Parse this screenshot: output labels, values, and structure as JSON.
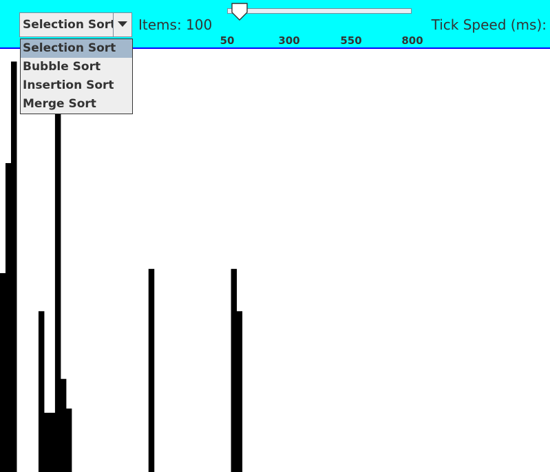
{
  "toolbar": {
    "algorithm_selected": "Selection Sort",
    "items_label": "Items: 100",
    "speed_label": "Tick Speed (ms):",
    "slider_ticks": [
      "50",
      "300",
      "550",
      "800"
    ]
  },
  "menu": {
    "items": [
      "Selection Sort",
      "Bubble Sort",
      "Insertion Sort",
      "Merge Sort"
    ],
    "selected_index": 0
  },
  "colors": {
    "toolbar_bg": "#00ffff",
    "toolbar_border": "#0000ff",
    "bar": "#000000"
  },
  "chart_data": {
    "type": "bar",
    "values": [
      47,
      73,
      97,
      0,
      0,
      0,
      0,
      38,
      14,
      14,
      91,
      22,
      15,
      0,
      0,
      0,
      0,
      0,
      0,
      0,
      0,
      0,
      0,
      0,
      0,
      0,
      0,
      48,
      0,
      0,
      0,
      0,
      0,
      0,
      0,
      0,
      0,
      0,
      0,
      0,
      0,
      0,
      48,
      38,
      0,
      0,
      0,
      0,
      0,
      0,
      0,
      0,
      0,
      0,
      0,
      0,
      0,
      0,
      0,
      0,
      0,
      0,
      0,
      0,
      0,
      0,
      0,
      0,
      0,
      0,
      0,
      0,
      0,
      0,
      0,
      0,
      0,
      0,
      0,
      0,
      0,
      0,
      0,
      0,
      0,
      0,
      0,
      0,
      0,
      0,
      0,
      0,
      0,
      0,
      0,
      0,
      0,
      0,
      0,
      0
    ]
  }
}
